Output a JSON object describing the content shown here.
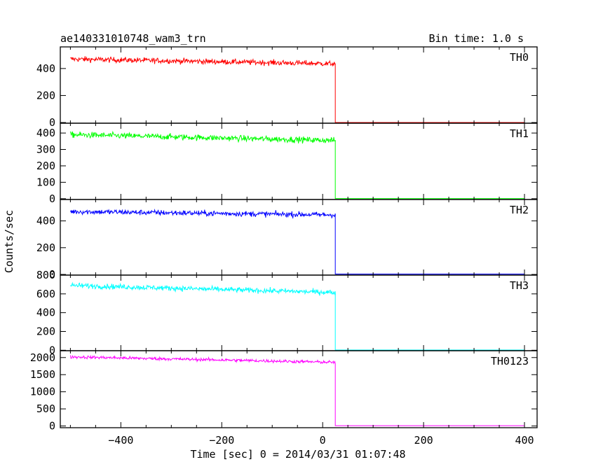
{
  "chart_data": {
    "type": "line",
    "title": "ae140331010748_wam3_trn",
    "subtitle": "Bin time: 1.0 s",
    "xlabel": "Time [sec] 0 = 2014/03/31 01:07:48",
    "ylabel": "Counts/sec",
    "xlim": [
      -520,
      425
    ],
    "xticks": [
      -400,
      -200,
      0,
      200,
      400
    ],
    "xtick_labels": [
      "−400",
      "−200",
      "0",
      "200",
      "400"
    ],
    "drop_time": 25,
    "data_start": -500,
    "data_end": 400,
    "panels": [
      {
        "name": "TH0",
        "color": "#ff0000",
        "ylim": [
          -5,
          560
        ],
        "yticks": [
          0,
          200,
          400
        ],
        "ytick_labels": [
          "0",
          "200",
          "400"
        ],
        "level_start": 470,
        "level_end": 435,
        "noise": 20,
        "level_after": 0
      },
      {
        "name": "TH1",
        "color": "#00ff00",
        "ylim": [
          -5,
          460
        ],
        "yticks": [
          0,
          100,
          200,
          300,
          400
        ],
        "ytick_labels": [
          "0",
          "100",
          "200",
          "300",
          "400"
        ],
        "level_start": 390,
        "level_end": 355,
        "noise": 18,
        "level_after": 1
      },
      {
        "name": "TH2",
        "color": "#0000ff",
        "ylim": [
          -5,
          560
        ],
        "yticks": [
          0,
          200,
          400
        ],
        "ytick_labels": [
          "0",
          "200",
          "400"
        ],
        "level_start": 470,
        "level_end": 445,
        "noise": 20,
        "level_after": 3
      },
      {
        "name": "TH3",
        "color": "#00ffff",
        "ylim": [
          -5,
          800
        ],
        "yticks": [
          0,
          200,
          400,
          600,
          800
        ],
        "ytick_labels": [
          "0",
          "200",
          "400",
          "600",
          "800"
        ],
        "level_start": 690,
        "level_end": 615,
        "noise": 28,
        "level_after": 2
      },
      {
        "name": "TH0123",
        "color": "#ff00ff",
        "ylim": [
          -50,
          2200
        ],
        "yticks": [
          0,
          500,
          1000,
          1500,
          2000
        ],
        "ytick_labels": [
          "0",
          "500",
          "1000",
          "1500",
          "2000"
        ],
        "level_start": 2020,
        "level_end": 1860,
        "noise": 45,
        "level_after": 8
      }
    ]
  }
}
